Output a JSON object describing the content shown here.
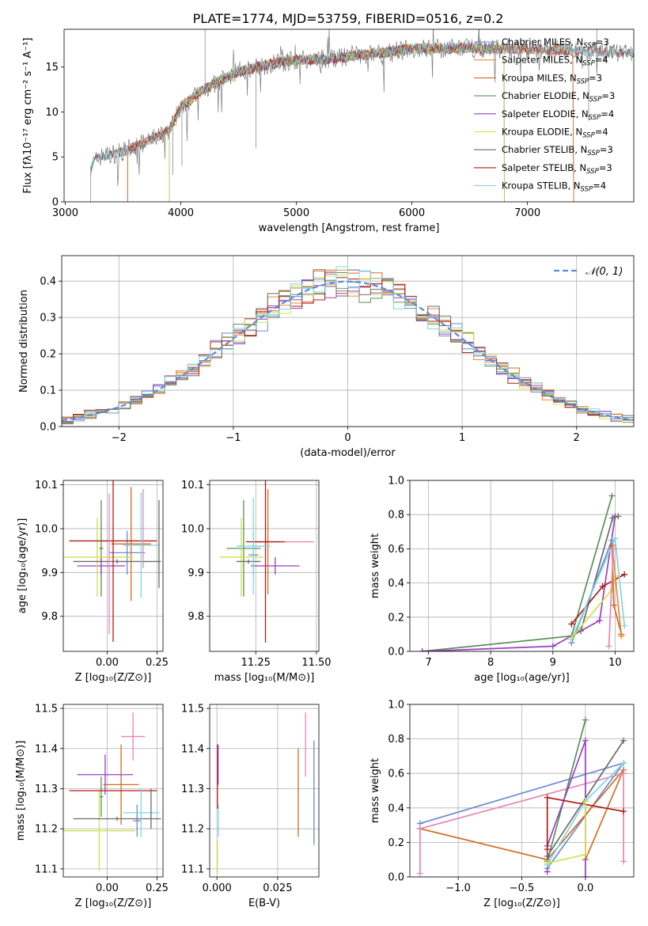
{
  "figure": {
    "title": "PLATE=1774, MJD=53759, FIBERID=0516, z=0.2"
  },
  "colors": {
    "Chabrier MILES": "#6a89d6",
    "Salpeter MILES": "#e8883a",
    "Kroupa MILES": "#d26d22",
    "Chabrier ELODIE": "#5c8f5c",
    "Salpeter ELODIE": "#9a3fbf",
    "Kroupa ELODIE": "#d3e14a",
    "Chabrier STELIB": "#6b6b6b",
    "Salpeter STELIB": "#b01c1c",
    "Kroupa STELIB": "#7fd6e3",
    "Pink": "#e884b5"
  },
  "chart_data": [
    {
      "id": "spectrum",
      "type": "line",
      "xlabel": "wavelength [Angstrom, rest frame]",
      "ylabel": "Flux [fλ10⁻¹⁷ erg cm⁻² s⁻¹ A⁻¹]",
      "xlim": [
        2990,
        7920
      ],
      "ylim": [
        0,
        19.2
      ],
      "xticks": [
        "3000",
        "4000",
        "5000",
        "6000",
        "7000"
      ],
      "yticks": [
        "0",
        "5",
        "10",
        "15"
      ],
      "legend": "top-right",
      "legend_entries": [
        {
          "name": "Chabrier MILES, N",
          "sub": "SSP",
          "tail": "=3"
        },
        {
          "name": "Salpeter MILES, N",
          "sub": "SSP",
          "tail": "=4"
        },
        {
          "name": "Kroupa MILES, N",
          "sub": "SSP",
          "tail": "=3"
        },
        {
          "name": "Chabrier ELODIE, N",
          "sub": "SSP",
          "tail": "=3"
        },
        {
          "name": "Salpeter ELODIE, N",
          "sub": "SSP",
          "tail": "=4"
        },
        {
          "name": "Kroupa ELODIE, N",
          "sub": "SSP",
          "tail": "=4"
        },
        {
          "name": "Chabrier STELIB, N",
          "sub": "SSP",
          "tail": "=3"
        },
        {
          "name": "Salpeter STELIB, N",
          "sub": "SSP",
          "tail": "=3"
        },
        {
          "name": "Kroupa STELIB, N",
          "sub": "SSP",
          "tail": "=4"
        }
      ],
      "series": [
        {
          "name": "Chabrier MILES",
          "start": 3540,
          "end": 7400
        },
        {
          "name": "Salpeter MILES",
          "start": 3540,
          "end": 7400
        },
        {
          "name": "Kroupa MILES",
          "start": 3540,
          "end": 7400
        },
        {
          "name": "Chabrier ELODIE",
          "start": 3900,
          "end": 6800
        },
        {
          "name": "Salpeter ELODIE",
          "start": 3900,
          "end": 6800
        },
        {
          "name": "Kroupa ELODIE",
          "start": 3900,
          "end": 6800
        },
        {
          "name": "Chabrier STELIB",
          "start": 3220,
          "end": 7920
        },
        {
          "name": "Salpeter STELIB",
          "start": 3220,
          "end": 7920
        },
        {
          "name": "Kroupa STELIB",
          "start": 3220,
          "end": 7920
        }
      ],
      "continuum": [
        [
          3220,
          4.0
        ],
        [
          3300,
          5.0
        ],
        [
          3500,
          5.6
        ],
        [
          3700,
          6.6
        ],
        [
          3900,
          8.0
        ],
        [
          4000,
          10.6
        ],
        [
          4200,
          12.5
        ],
        [
          4500,
          14.5
        ],
        [
          4800,
          15.4
        ],
        [
          5000,
          15.8
        ],
        [
          5300,
          15.9
        ],
        [
          5600,
          16.4
        ],
        [
          6000,
          17.0
        ],
        [
          6500,
          17.1
        ],
        [
          7000,
          17.0
        ],
        [
          7500,
          16.8
        ],
        [
          7920,
          16.5
        ]
      ],
      "data_line": [
        [
          3220,
          0
        ],
        [
          3222,
          4.0
        ]
      ]
    },
    {
      "id": "residuals",
      "type": "bar",
      "xlabel": "(data-model)/error",
      "ylabel": "Normed distribution",
      "xlim": [
        -2.5,
        2.5
      ],
      "ylim": [
        0,
        0.47
      ],
      "xticks": [
        "−2",
        "−1",
        "0",
        "1",
        "2"
      ],
      "yticks": [
        "0.0",
        "0.1",
        "0.2",
        "0.3",
        "0.4"
      ],
      "legend": "top-right",
      "legend_label": "𝒩(0, 1)",
      "bin_width": 0.1,
      "bin_start": -2.5,
      "gaussian": {
        "mu": 0,
        "sigma": 1
      }
    },
    {
      "id": "age-Z",
      "type": "scatter",
      "xlabel": "Z [log₁₀(Z/Z⊙)]",
      "ylabel": "age  [log₁₀(age/yr)]",
      "xlim": [
        -0.22,
        0.28
      ],
      "ylim": [
        9.72,
        10.11
      ],
      "xticks": [
        "0.00",
        "0.25"
      ],
      "yticks": [
        "9.8",
        "9.9",
        "10.0",
        "10.1"
      ],
      "points": [
        {
          "series": "Chabrier MILES",
          "x": 0.1,
          "xerr": 0.09,
          "y": 9.945,
          "yerr": 0.05
        },
        {
          "series": "Kroupa MILES",
          "x": 0.12,
          "xerr": 0.1,
          "y": 9.965,
          "yerr": 0.13
        },
        {
          "series": "Chabrier ELODIE",
          "x": -0.03,
          "xerr": 0.01,
          "y": 9.955,
          "yerr": 0.11
        },
        {
          "series": "Salpeter ELODIE",
          "x": -0.03,
          "xerr": 0.12,
          "y": 9.915,
          "yerr": 0.02
        },
        {
          "series": "Kroupa ELODIE",
          "x": -0.05,
          "xerr": 0.18,
          "y": 9.935,
          "yerr": 0.09
        },
        {
          "series": "Chabrier STELIB",
          "x": 0.05,
          "xerr": 0.22,
          "y": 9.925,
          "yerr": 0.005
        },
        {
          "series": "Salpeter STELIB",
          "x": 0.03,
          "xerr": 0.22,
          "y": 9.972,
          "yerr": 0.23
        },
        {
          "series": "Kroupa STELIB",
          "x": 0.17,
          "xerr": 0.09,
          "y": 9.962,
          "yerr": 0.12
        },
        {
          "series": "Chabrier STELIB",
          "x": 0.26,
          "xerr": 0.0,
          "y": 9.965,
          "yerr": 0.1
        },
        {
          "series": "Pink",
          "x": 0.01,
          "xerr": 0.0,
          "y": 9.92,
          "yerr": 0.16
        },
        {
          "series": "Pink",
          "x": 0.18,
          "xerr": 0.0,
          "y": 10.0,
          "yerr": 0.09
        }
      ]
    },
    {
      "id": "age-mass",
      "type": "scatter",
      "xlabel": "mass [log₁₀(M/M⊙)]",
      "ylabel": "",
      "xlim": [
        11.06,
        11.51
      ],
      "ylim": [
        9.72,
        10.11
      ],
      "xticks": [
        "11.25",
        "11.50"
      ],
      "yticks": [
        "9.8",
        "9.9",
        "10.0",
        "10.1"
      ],
      "points": [
        {
          "series": "Chabrier MILES",
          "x": 11.24,
          "xerr": 0.02,
          "y": 9.94,
          "yerr": 0.05
        },
        {
          "series": "Kroupa MILES",
          "x": 11.3,
          "xerr": 0.05,
          "y": 9.97,
          "yerr": 0.12
        },
        {
          "series": "Chabrier ELODIE",
          "x": 11.2,
          "xerr": 0.07,
          "y": 9.955,
          "yerr": 0.11
        },
        {
          "series": "Salpeter ELODIE",
          "x": 11.33,
          "xerr": 0.1,
          "y": 9.915,
          "yerr": 0.02
        },
        {
          "series": "Kroupa ELODIE",
          "x": 11.19,
          "xerr": 0.09,
          "y": 9.935,
          "yerr": 0.09
        },
        {
          "series": "Chabrier STELIB",
          "x": 11.22,
          "xerr": 0.05,
          "y": 9.925,
          "yerr": 0.005
        },
        {
          "series": "Salpeter STELIB",
          "x": 11.29,
          "xerr": 0.08,
          "y": 9.97,
          "yerr": 0.23
        },
        {
          "series": "Kroupa STELIB",
          "x": 11.24,
          "xerr": 0.07,
          "y": 9.96,
          "yerr": 0.11
        },
        {
          "series": "Pink",
          "x": 11.43,
          "xerr": 0.06,
          "y": 9.97,
          "yerr": 0.0
        }
      ]
    },
    {
      "id": "weight-age",
      "type": "line",
      "xlabel": "age  [log₁₀(age/yr)]",
      "ylabel": "mass weight",
      "xlim": [
        6.7,
        10.3
      ],
      "ylim": [
        0,
        1.0
      ],
      "xticks": [
        "7",
        "8",
        "9",
        "10"
      ],
      "yticks": [
        "0.0",
        "0.2",
        "0.4",
        "0.6",
        "0.8",
        "1.0"
      ],
      "series": [
        {
          "name": "Chabrier ELODIE",
          "points": [
            [
              6.9,
              0.0
            ],
            [
              9.3,
              0.09
            ],
            [
              9.95,
              0.91
            ]
          ]
        },
        {
          "name": "Salpeter ELODIE",
          "points": [
            [
              6.9,
              0.0
            ],
            [
              9.0,
              0.03
            ],
            [
              9.75,
              0.18
            ],
            [
              10.0,
              0.79
            ]
          ]
        },
        {
          "name": "Chabrier STELIB",
          "points": [
            [
              9.45,
              0.12
            ],
            [
              9.96,
              0.78
            ],
            [
              10.05,
              0.79
            ]
          ]
        },
        {
          "name": "Salpeter STELIB",
          "points": [
            [
              9.3,
              0.16
            ],
            [
              9.8,
              0.38
            ],
            [
              10.15,
              0.45
            ]
          ]
        },
        {
          "name": "Chabrier MILES",
          "points": [
            [
              9.3,
              0.05
            ],
            [
              9.95,
              0.65
            ]
          ]
        },
        {
          "name": "Kroupa STELIB",
          "points": [
            [
              9.3,
              0.07
            ],
            [
              10.0,
              0.66
            ],
            [
              10.15,
              0.15
            ]
          ]
        },
        {
          "name": "Kroupa ELODIE",
          "points": [
            [
              9.3,
              0.08
            ],
            [
              9.95,
              0.36
            ],
            [
              10.0,
              0.44
            ]
          ]
        },
        {
          "name": "Kroupa MILES",
          "points": [
            [
              9.95,
              0.62
            ],
            [
              9.98,
              0.27
            ],
            [
              10.1,
              0.1
            ]
          ]
        },
        {
          "name": "Salpeter MILES",
          "points": [
            [
              9.96,
              0.6
            ],
            [
              10.1,
              0.09
            ]
          ]
        },
        {
          "name": "Pink",
          "points": [
            [
              9.9,
              0.03
            ],
            [
              9.97,
              0.6
            ]
          ]
        }
      ]
    },
    {
      "id": "mass-Z",
      "type": "scatter",
      "xlabel": "Z [log₁₀(Z/Z⊙)]",
      "ylabel": "mass [log₁₀(M/M⊙)]",
      "xlim": [
        -0.22,
        0.28
      ],
      "ylim": [
        11.08,
        11.51
      ],
      "xticks": [
        "0.00",
        "0.25"
      ],
      "yticks": [
        "11.1",
        "11.2",
        "11.3",
        "11.4",
        "11.5"
      ],
      "points": [
        {
          "series": "Chabrier MILES",
          "x": 0.15,
          "xerr": 0.02,
          "y": 11.22,
          "yerr": 0.04
        },
        {
          "series": "Kroupa MILES",
          "x": 0.07,
          "xerr": 0.09,
          "y": 11.31,
          "yerr": 0.1
        },
        {
          "series": "Chabrier ELODIE",
          "x": -0.03,
          "xerr": 0.01,
          "y": 11.28,
          "yerr": 0.05
        },
        {
          "series": "Salpeter ELODIE",
          "x": -0.01,
          "xerr": 0.14,
          "y": 11.335,
          "yerr": 0.05
        },
        {
          "series": "Kroupa ELODIE",
          "x": -0.04,
          "xerr": 0.18,
          "y": 11.195,
          "yerr": 0.1
        },
        {
          "series": "Chabrier STELIB",
          "x": 0.05,
          "xerr": 0.22,
          "y": 11.225,
          "yerr": 0.005
        },
        {
          "series": "Salpeter STELIB",
          "x": 0.03,
          "xerr": 0.22,
          "y": 11.295,
          "yerr": 0.0
        },
        {
          "series": "Kroupa STELIB",
          "x": 0.17,
          "xerr": 0.09,
          "y": 11.24,
          "yerr": 0.06
        },
        {
          "series": "Chabrier STELIB",
          "x": 0.22,
          "xerr": 0.0,
          "y": 11.25,
          "yerr": 0.05
        },
        {
          "series": "Pink",
          "x": 0.13,
          "xerr": 0.06,
          "y": 11.43,
          "yerr": 0.06
        }
      ]
    },
    {
      "id": "mass-EBV",
      "type": "scatter",
      "xlabel": "E(B-V)",
      "ylabel": "",
      "xlim": [
        -0.003,
        0.042
      ],
      "ylim": [
        11.08,
        11.51
      ],
      "xticks": [
        "0.000",
        "0.025"
      ],
      "yticks": [
        "11.1",
        "11.2",
        "11.3",
        "11.4",
        "11.5"
      ],
      "points": [
        {
          "series": "Salpeter STELIB",
          "x": 0.0002,
          "xerr": 0,
          "y": 11.33,
          "yerr": 0.08
        },
        {
          "series": "Salpeter ELODIE",
          "x": 0.0005,
          "xerr": 0,
          "y": 11.36,
          "yerr": 0.05
        },
        {
          "series": "Kroupa STELIB",
          "x": 0.0006,
          "xerr": 0,
          "y": 11.22,
          "yerr": 0.04
        },
        {
          "series": "Kroupa ELODIE",
          "x": 0.0002,
          "xerr": 0,
          "y": 11.13,
          "yerr": 0.04
        },
        {
          "series": "Kroupa MILES",
          "x": 0.0335,
          "xerr": 0,
          "y": 11.29,
          "yerr": 0.11
        },
        {
          "series": "Pink",
          "x": 0.0365,
          "xerr": 0,
          "y": 11.41,
          "yerr": 0.08
        },
        {
          "series": "Chabrier MILES",
          "x": 0.04,
          "xerr": 0,
          "y": 11.29,
          "yerr": 0.13
        }
      ]
    },
    {
      "id": "weight-Z",
      "type": "line",
      "xlabel": "Z [log₁₀(Z/Z⊙)]",
      "ylabel": "mass weight",
      "xlim": [
        -1.38,
        0.38
      ],
      "ylim": [
        0,
        1.0
      ],
      "xticks": [
        "−1.0",
        "−0.5",
        "0.0"
      ],
      "yticks": [
        "0.0",
        "0.2",
        "0.4",
        "0.6",
        "0.8",
        "1.0"
      ],
      "series": [
        {
          "name": "Chabrier MILES",
          "points": [
            [
              -1.3,
              0.31
            ],
            [
              0.3,
              0.66
            ],
            [
              -0.3,
              0.05
            ]
          ]
        },
        {
          "name": "Kroupa MILES",
          "points": [
            [
              -1.3,
              0.28
            ],
            [
              -0.3,
              0.1
            ],
            [
              0.3,
              0.62
            ],
            [
              0.0,
              0.1
            ]
          ]
        },
        {
          "name": "Pink",
          "points": [
            [
              -1.3,
              0.02
            ],
            [
              -1.3,
              0.28
            ],
            [
              0.3,
              0.6
            ],
            [
              0.3,
              0.09
            ]
          ]
        },
        {
          "name": "Chabrier ELODIE",
          "points": [
            [
              -0.3,
              0.09
            ],
            [
              0.0,
              0.91
            ]
          ]
        },
        {
          "name": "Salpeter ELODIE",
          "points": [
            [
              -0.3,
              0.03
            ],
            [
              -0.3,
              0.18
            ],
            [
              0.0,
              0.79
            ],
            [
              0.0,
              0.0
            ]
          ]
        },
        {
          "name": "Chabrier STELIB",
          "points": [
            [
              -0.3,
              0.12
            ],
            [
              0.3,
              0.79
            ]
          ]
        },
        {
          "name": "Salpeter STELIB",
          "points": [
            [
              -0.3,
              0.16
            ],
            [
              -0.3,
              0.46
            ],
            [
              0.3,
              0.38
            ]
          ]
        },
        {
          "name": "Kroupa STELIB",
          "points": [
            [
              -0.3,
              0.07
            ],
            [
              0.0,
              0.44
            ],
            [
              0.3,
              0.66
            ]
          ]
        },
        {
          "name": "Kroupa ELODIE",
          "points": [
            [
              -0.3,
              0.08
            ],
            [
              0.0,
              0.13
            ],
            [
              0.0,
              0.44
            ]
          ]
        }
      ]
    }
  ]
}
